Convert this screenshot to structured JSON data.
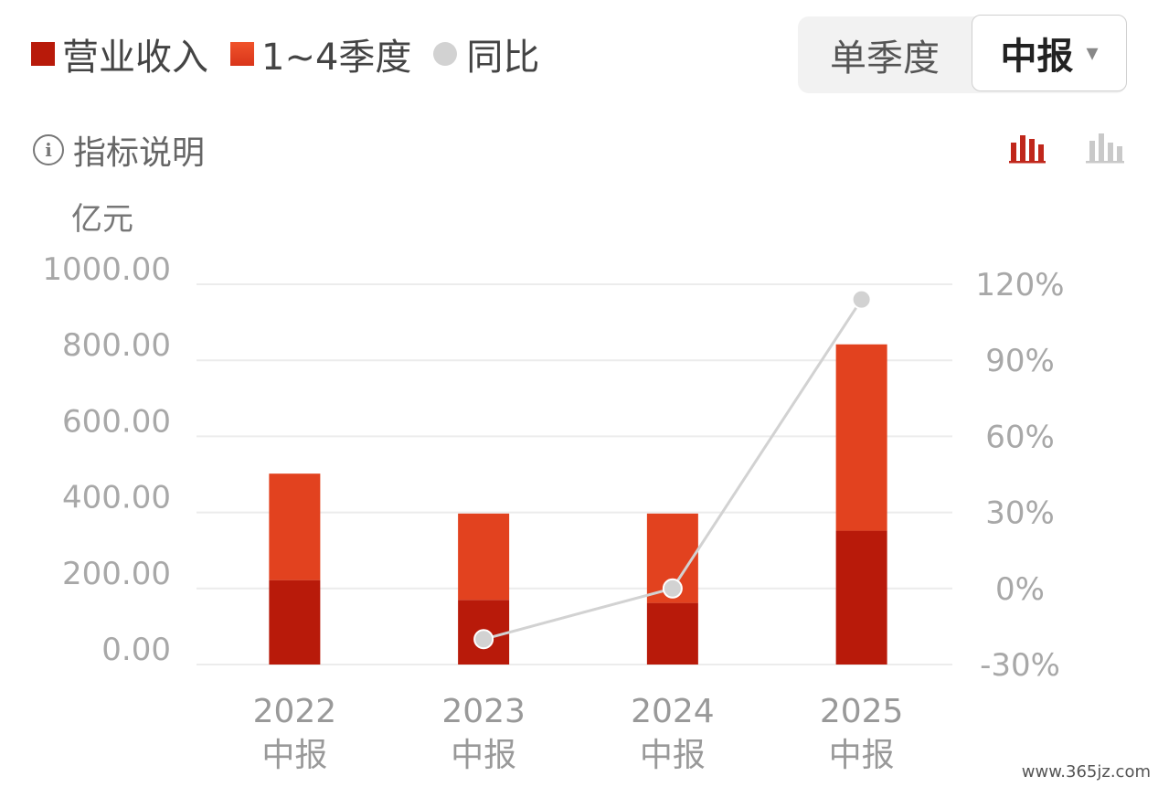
{
  "legend": {
    "revenue_label": "营业收入",
    "q14_label": "1~4季度",
    "yoy_label": "同比"
  },
  "period_toggle": {
    "single_label": "单季度",
    "selected_label": "中报",
    "arrow": "▾"
  },
  "info": {
    "label": "指标说明",
    "icon": "info-icon"
  },
  "unit": "亿元",
  "watermark": "www.365jz.com",
  "colors": {
    "revenue": "#b81a0a",
    "q14": "#e2421f",
    "yoy": "#d2d2d2",
    "icon_active": "#c0271b",
    "icon_inactive": "#c9c9c9"
  },
  "chart_data": {
    "type": "bar",
    "stacked": true,
    "categories": [
      {
        "year": "2022",
        "period": "中报"
      },
      {
        "year": "2023",
        "period": "中报"
      },
      {
        "year": "2024",
        "period": "中报"
      },
      {
        "year": "2025",
        "period": "中报"
      }
    ],
    "series": [
      {
        "name": "营业收入",
        "values": [
          222,
          170,
          162,
          352
        ]
      },
      {
        "name": "1~4季度",
        "values": [
          280,
          227,
          235,
          490
        ]
      }
    ],
    "line_series": {
      "name": "同比",
      "axis": "right",
      "values": [
        null,
        -20,
        0,
        114
      ]
    },
    "y_left": {
      "range": [
        0,
        1000
      ],
      "ticks": [
        "0.00",
        "200.00",
        "400.00",
        "600.00",
        "800.00",
        "1000.00"
      ]
    },
    "y_right": {
      "range": [
        -30,
        120
      ],
      "ticks": [
        "-30%",
        "0%",
        "30%",
        "60%",
        "90%",
        "120%"
      ]
    },
    "grid": true,
    "legend_position": "top-left"
  }
}
